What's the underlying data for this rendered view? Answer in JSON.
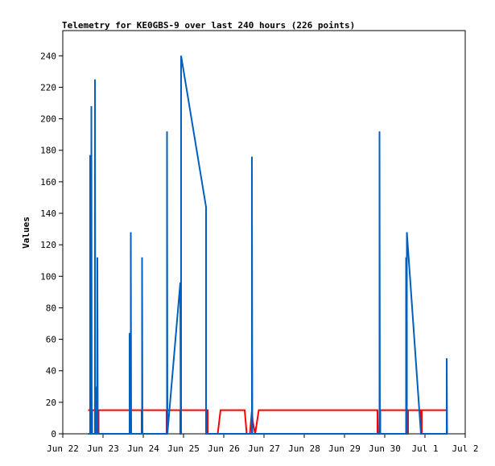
{
  "chart_data": {
    "type": "line",
    "title": "Telemetry for KE0GBS-9 over last 240 hours (226 points)",
    "ylabel": "Values",
    "xlabel": "",
    "ylim": [
      0,
      256
    ],
    "yticks": [
      0,
      20,
      40,
      60,
      80,
      100,
      120,
      140,
      160,
      180,
      200,
      220,
      240
    ],
    "xlim": [
      0,
      10
    ],
    "xticks": [
      {
        "x": 0,
        "label": "Jun 22"
      },
      {
        "x": 1,
        "label": "Jun 23"
      },
      {
        "x": 2,
        "label": "Jun 24"
      },
      {
        "x": 3,
        "label": "Jun 25"
      },
      {
        "x": 4,
        "label": "Jun 26"
      },
      {
        "x": 5,
        "label": "Jun 27"
      },
      {
        "x": 6,
        "label": "Jun 28"
      },
      {
        "x": 7,
        "label": "Jun 29"
      },
      {
        "x": 8,
        "label": "Jun 30"
      },
      {
        "x": 9,
        "label": "Jul 1"
      },
      {
        "x": 10,
        "label": "Jul 2"
      }
    ],
    "grid": false,
    "series": [
      {
        "color": "#ff0000",
        "points": [
          [
            0.63,
            15
          ],
          [
            0.72,
            15
          ],
          [
            0.72,
            0
          ],
          [
            0.73,
            0
          ],
          [
            0.73,
            15
          ],
          [
            0.8,
            15
          ],
          [
            0.8,
            0
          ],
          [
            0.81,
            0
          ],
          [
            0.81,
            15
          ],
          [
            0.88,
            15
          ],
          [
            0.88,
            0
          ],
          [
            0.89,
            0
          ],
          [
            0.89,
            15
          ],
          [
            1.68,
            15
          ],
          [
            1.68,
            0
          ],
          [
            1.69,
            0
          ],
          [
            1.69,
            15
          ],
          [
            1.96,
            15
          ],
          [
            1.96,
            0
          ],
          [
            1.97,
            0
          ],
          [
            1.97,
            15
          ],
          [
            2.58,
            15
          ],
          [
            2.58,
            0
          ],
          [
            2.59,
            0
          ],
          [
            2.59,
            15
          ],
          [
            2.92,
            15
          ],
          [
            2.92,
            0
          ],
          [
            2.93,
            0
          ],
          [
            2.93,
            15
          ],
          [
            3.56,
            15
          ],
          [
            3.56,
            0
          ],
          [
            3.57,
            0
          ],
          [
            3.57,
            15
          ],
          [
            3.6,
            15
          ],
          [
            3.6,
            0
          ],
          [
            3.85,
            0
          ],
          [
            3.92,
            15
          ],
          [
            4.52,
            15
          ],
          [
            4.57,
            0
          ],
          [
            4.65,
            0
          ],
          [
            4.7,
            15
          ],
          [
            4.72,
            8
          ],
          [
            4.78,
            0
          ],
          [
            4.87,
            15
          ],
          [
            7.82,
            15
          ],
          [
            7.82,
            0
          ],
          [
            7.86,
            0
          ],
          [
            7.87,
            15
          ],
          [
            7.88,
            15
          ],
          [
            7.88,
            0
          ],
          [
            7.89,
            0
          ],
          [
            7.89,
            15
          ],
          [
            8.57,
            15
          ],
          [
            8.57,
            0
          ],
          [
            8.58,
            0
          ],
          [
            8.58,
            15
          ],
          [
            8.9,
            15
          ],
          [
            8.9,
            0
          ],
          [
            8.92,
            0
          ],
          [
            8.92,
            15
          ],
          [
            9.55,
            15
          ]
        ]
      },
      {
        "color": "#0060c0",
        "points": [
          [
            0.63,
            0
          ],
          [
            0.68,
            0
          ],
          [
            0.68,
            177
          ],
          [
            0.69,
            0
          ],
          [
            0.71,
            0
          ],
          [
            0.71,
            208
          ],
          [
            0.72,
            0
          ],
          [
            0.75,
            0
          ],
          [
            0.75,
            0
          ],
          [
            0.8,
            0
          ],
          [
            0.8,
            225
          ],
          [
            0.81,
            0
          ],
          [
            0.84,
            0
          ],
          [
            0.84,
            30
          ],
          [
            0.85,
            0
          ],
          [
            0.86,
            0
          ],
          [
            0.86,
            112
          ],
          [
            0.87,
            0
          ],
          [
            0.88,
            0
          ],
          [
            1.66,
            0
          ],
          [
            1.66,
            64
          ],
          [
            1.67,
            0
          ],
          [
            1.69,
            0
          ],
          [
            1.69,
            128
          ],
          [
            1.7,
            0
          ],
          [
            1.97,
            0
          ],
          [
            1.97,
            112
          ],
          [
            1.98,
            0
          ],
          [
            2.59,
            0
          ],
          [
            2.59,
            192
          ],
          [
            2.6,
            0
          ],
          [
            2.6,
            0
          ],
          [
            2.92,
            96
          ],
          [
            2.93,
            0
          ],
          [
            2.94,
            0
          ],
          [
            2.94,
            240
          ],
          [
            3.56,
            144
          ],
          [
            3.56,
            0
          ],
          [
            4.7,
            0
          ],
          [
            4.7,
            176
          ],
          [
            4.71,
            0
          ],
          [
            4.72,
            0
          ],
          [
            7.87,
            0
          ],
          [
            7.87,
            192
          ],
          [
            7.88,
            0
          ],
          [
            8.53,
            0
          ],
          [
            8.53,
            112
          ],
          [
            8.55,
            0
          ],
          [
            8.55,
            128
          ],
          [
            8.9,
            0
          ],
          [
            9.54,
            0
          ],
          [
            9.54,
            48
          ],
          [
            9.55,
            0
          ]
        ]
      }
    ]
  }
}
